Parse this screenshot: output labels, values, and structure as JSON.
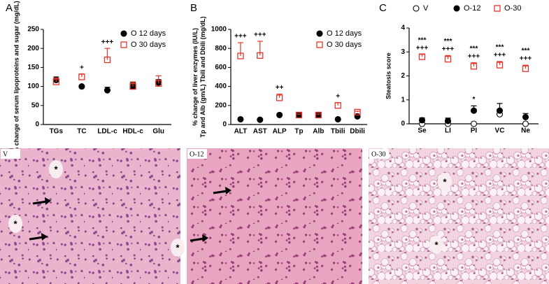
{
  "chart_data": [
    {
      "type": "dot",
      "panel_label": "A",
      "ylabel": [
        "% change of serum lipoproteins and sugar (mg/dL)"
      ],
      "categories": [
        "TGs",
        "TC",
        "LDL-c",
        "HDL-c",
        "Glu"
      ],
      "ylim": [
        0,
        250
      ],
      "yticks": [
        0,
        50,
        100,
        150,
        200,
        250
      ],
      "legend": "top-right",
      "series": [
        {
          "name": "O 12 days",
          "color": "#000000",
          "marker": "circle",
          "filled": true,
          "values": [
            117,
            100,
            90,
            100,
            110
          ],
          "errors": [
            8,
            0,
            8,
            10,
            8
          ],
          "annotations": [
            null,
            null,
            null,
            null,
            null
          ]
        },
        {
          "name": "O 30 days",
          "color": "#e8322a",
          "marker": "square",
          "filled": false,
          "values": [
            112,
            125,
            170,
            100,
            108
          ],
          "errors": [
            10,
            8,
            30,
            12,
            20
          ],
          "annotations": [
            null,
            [
              "+"
            ],
            [
              "+++"
            ],
            null,
            null
          ]
        }
      ]
    },
    {
      "type": "dot",
      "panel_label": "B",
      "ylabel": [
        "% change of liver enzymes (IU/L)",
        "Tp and Alb (gm/L) Tbili and Dbili (mg/dL)"
      ],
      "categories": [
        "ALT",
        "AST",
        "ALP",
        "Tp",
        "Alb",
        "Tbili",
        "Dbili"
      ],
      "ylim": [
        0,
        1000
      ],
      "yticks": [
        0,
        200,
        400,
        600,
        800,
        1000
      ],
      "legend": "top-right",
      "series": [
        {
          "name": "O 12 days",
          "color": "#000000",
          "marker": "circle",
          "filled": true,
          "values": [
            55,
            50,
            100,
            100,
            100,
            55,
            85
          ],
          "errors": [
            0,
            0,
            0,
            0,
            0,
            0,
            0
          ],
          "annotations": [
            null,
            null,
            null,
            null,
            null,
            null,
            null
          ]
        },
        {
          "name": "O 30 days",
          "color": "#e8322a",
          "marker": "square",
          "filled": false,
          "values": [
            720,
            725,
            280,
            100,
            100,
            200,
            130
          ],
          "errors": [
            140,
            150,
            40,
            10,
            10,
            30,
            10
          ],
          "annotations": [
            [
              "+++"
            ],
            [
              "+++"
            ],
            [
              "++"
            ],
            null,
            null,
            [
              "+"
            ],
            null
          ]
        }
      ]
    },
    {
      "type": "dot",
      "panel_label": "C",
      "ylabel": [
        "Steatosis score"
      ],
      "categories": [
        "Se",
        "LI",
        "PI",
        "VC",
        "Ne"
      ],
      "ylim": [
        0,
        4
      ],
      "yticks": [
        0,
        1,
        2,
        3,
        4
      ],
      "legend": "top",
      "series": [
        {
          "name": "V",
          "color": "#000000",
          "marker": "circle",
          "filled": false,
          "values": [
            0,
            0,
            0,
            0.4,
            0
          ],
          "errors": [
            0,
            0,
            0,
            0,
            0
          ],
          "annotations": [
            null,
            null,
            null,
            null,
            null
          ]
        },
        {
          "name": "O-12",
          "color": "#000000",
          "marker": "circle",
          "filled": true,
          "values": [
            0.15,
            0.12,
            0.55,
            0.55,
            0.28
          ],
          "errors": [
            0.1,
            0.12,
            0.2,
            0.3,
            0.15
          ],
          "annotations": [
            null,
            null,
            [
              "*"
            ],
            null,
            null
          ]
        },
        {
          "name": "O-30",
          "color": "#e8322a",
          "marker": "square",
          "filled": false,
          "values": [
            2.8,
            2.7,
            2.4,
            2.45,
            2.3
          ],
          "errors": [
            0.1,
            0.15,
            0.15,
            0.15,
            0.15
          ],
          "annotations": [
            [
              "***",
              "+++"
            ],
            [
              "***",
              "+++"
            ],
            [
              "***",
              "+++"
            ],
            [
              "***",
              "+++"
            ],
            [
              "***",
              "+++"
            ]
          ]
        }
      ]
    }
  ],
  "images": [
    {
      "label": "V",
      "annotations": [
        "*",
        "*",
        "*"
      ]
    },
    {
      "label": "O-12",
      "annotations": []
    },
    {
      "label": "O-30",
      "annotations": [
        "*",
        "*"
      ]
    }
  ]
}
